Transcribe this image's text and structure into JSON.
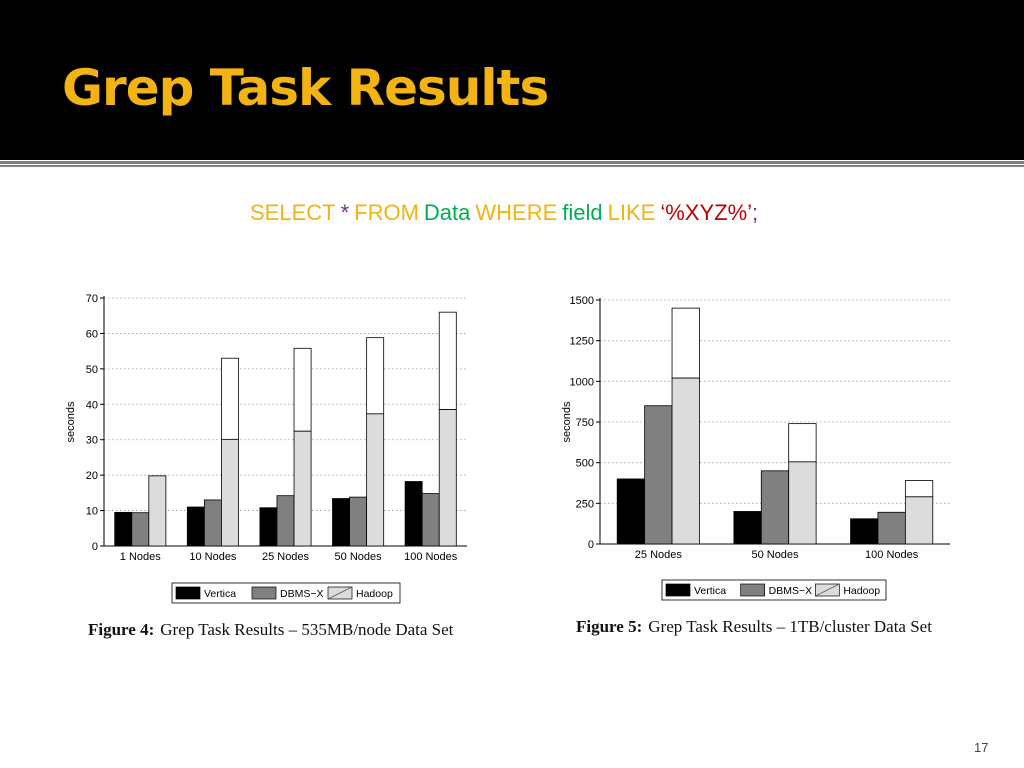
{
  "slide": {
    "title": "Grep Task Results",
    "page_number": "17"
  },
  "sql": {
    "tokens": [
      {
        "text": "SELECT",
        "color": "#f2b313"
      },
      {
        "text": "*",
        "color": "#7030a0"
      },
      {
        "text": "FROM",
        "color": "#f2b313"
      },
      {
        "text": "Data",
        "color": "#00b050"
      },
      {
        "text": "WHERE",
        "color": "#f2b313"
      },
      {
        "text": "field",
        "color": "#00b050"
      },
      {
        "text": "LIKE",
        "color": "#f2b313"
      },
      {
        "text": "‘%XYZ%’",
        "color": "#c00000"
      },
      {
        "text": ";",
        "color": "#7030a0"
      }
    ]
  },
  "colors": {
    "header_bg": "#000000",
    "title": "#f2b313",
    "rule": "#808080",
    "vertica": "#000000",
    "dbms_x": "#808080",
    "hadoop": "#dcdcdc",
    "hadoop_top": "#ffffff"
  },
  "chart_data": [
    {
      "type": "bar",
      "ylabel": "seconds",
      "xlabel": "",
      "ylim": [
        0,
        70
      ],
      "yticks": [
        0,
        10,
        20,
        30,
        40,
        50,
        60,
        70
      ],
      "grid": true,
      "legend_position": "bottom",
      "categories": [
        "1 Nodes",
        "10 Nodes",
        "25 Nodes",
        "50 Nodes",
        "100 Nodes"
      ],
      "series": [
        {
          "name": "Vertica",
          "values": [
            9.5,
            11,
            10.8,
            13.4,
            18.2
          ]
        },
        {
          "name": "DBMS−X",
          "values": [
            9.4,
            13,
            14.2,
            13.8,
            14.8
          ]
        },
        {
          "name": "Hadoop",
          "values": [
            19.8,
            53,
            55.8,
            58.8,
            66
          ],
          "inner_values": [
            null,
            30.1,
            32.4,
            37.3,
            38.5
          ]
        }
      ],
      "caption_label": "Figure 4:",
      "caption_text": "Grep Task Results – 535MB/node Data Set"
    },
    {
      "type": "bar",
      "ylabel": "seconds",
      "xlabel": "",
      "ylim": [
        0,
        1500
      ],
      "yticks": [
        0,
        250,
        500,
        750,
        1000,
        1250,
        1500
      ],
      "grid": true,
      "legend_position": "bottom",
      "categories": [
        "25 Nodes",
        "50 Nodes",
        "100 Nodes"
      ],
      "series": [
        {
          "name": "Vertica",
          "values": [
            400,
            200,
            155
          ]
        },
        {
          "name": "DBMS−X",
          "values": [
            850,
            450,
            195
          ]
        },
        {
          "name": "Hadoop",
          "values": [
            1450,
            740,
            390
          ],
          "inner_values": [
            1020,
            505,
            290
          ]
        }
      ],
      "caption_label": "Figure 5:",
      "caption_text": "Grep Task Results – 1TB/cluster Data Set"
    }
  ]
}
